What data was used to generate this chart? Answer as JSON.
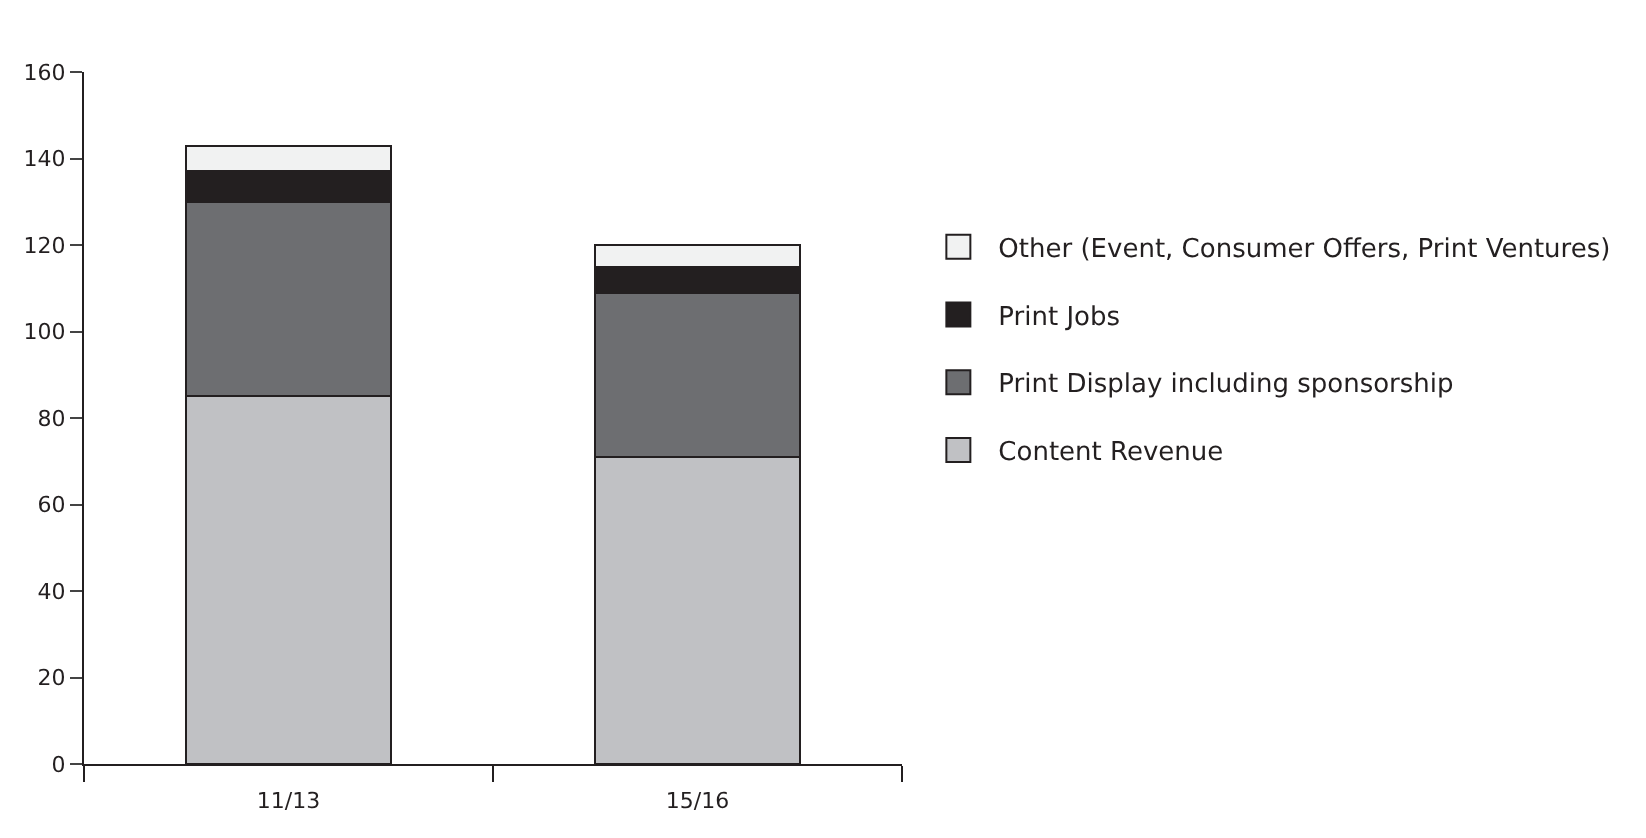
{
  "chart_data": {
    "type": "bar",
    "stacked": true,
    "categories": [
      "11/13",
      "15/16"
    ],
    "series": [
      {
        "name": "Content Revenue",
        "color": "#c0c1c4",
        "values": [
          85,
          71
        ]
      },
      {
        "name": "Print Display including sponsorship",
        "color": "#6d6e71",
        "values": [
          45,
          38
        ]
      },
      {
        "name": "Print Jobs",
        "color": "#231f20",
        "values": [
          7,
          6
        ]
      },
      {
        "name": "Other (Event, Consumer Offers, Print Ventures)",
        "color": "#f1f2f2",
        "values": [
          6,
          5
        ]
      }
    ],
    "ylim": [
      0,
      160
    ],
    "yticks": [
      0,
      20,
      40,
      60,
      80,
      100,
      120,
      140,
      160
    ],
    "legend": "right"
  }
}
